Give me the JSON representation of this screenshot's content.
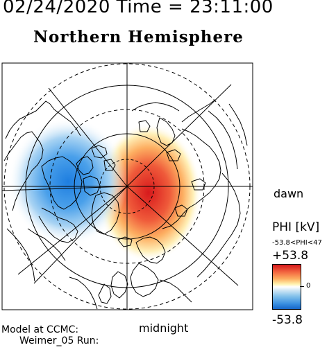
{
  "header": {
    "datetime": "02/24/2020 Time = 23:11:00",
    "hemisphere": "Northern Hemisphere"
  },
  "map": {
    "labels": {
      "dawn": "dawn",
      "midnight": "midnight"
    },
    "potential_peak_kv": 53.8,
    "colors": {
      "positive_cell": "#d7191c",
      "negative_cell": "#1565c8",
      "neutral": "#ffffff",
      "coast": "#000000"
    }
  },
  "footer": {
    "model_line1": "Model at CCMC:",
    "model_line2": "Weimer_05 Run:"
  },
  "colorbar": {
    "title": "PHI [kV]",
    "range": "-53.8<PHI<47",
    "max_label": "+53.8",
    "min_label": "-53.8",
    "zero_label": "0",
    "colors": [
      "#d7191c",
      "#fdae61",
      "#ffffff",
      "#7fbfea",
      "#1565c8"
    ]
  }
}
